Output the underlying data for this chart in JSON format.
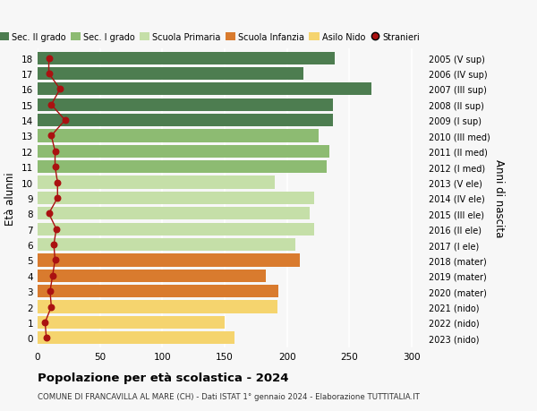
{
  "ages": [
    0,
    1,
    2,
    3,
    4,
    5,
    6,
    7,
    8,
    9,
    10,
    11,
    12,
    13,
    14,
    15,
    16,
    17,
    18
  ],
  "bar_values": [
    158,
    150,
    192,
    193,
    183,
    210,
    207,
    222,
    218,
    222,
    190,
    232,
    234,
    225,
    237,
    237,
    268,
    213,
    238
  ],
  "stranieri": [
    7,
    6,
    11,
    10,
    12,
    14,
    13,
    15,
    9,
    16,
    16,
    14,
    14,
    11,
    22,
    11,
    18,
    9,
    9
  ],
  "right_labels": [
    "2023 (nido)",
    "2022 (nido)",
    "2021 (nido)",
    "2020 (mater)",
    "2019 (mater)",
    "2018 (mater)",
    "2017 (I ele)",
    "2016 (II ele)",
    "2015 (III ele)",
    "2014 (IV ele)",
    "2013 (V ele)",
    "2012 (I med)",
    "2011 (II med)",
    "2010 (III med)",
    "2009 (I sup)",
    "2008 (II sup)",
    "2007 (III sup)",
    "2006 (IV sup)",
    "2005 (V sup)"
  ],
  "bar_colors": [
    "#f5d46e",
    "#f5d46e",
    "#f5d46e",
    "#d97b2e",
    "#d97b2e",
    "#d97b2e",
    "#c5dfa8",
    "#c5dfa8",
    "#c5dfa8",
    "#c5dfa8",
    "#c5dfa8",
    "#8dbb72",
    "#8dbb72",
    "#8dbb72",
    "#4d7d50",
    "#4d7d50",
    "#4d7d50",
    "#4d7d50",
    "#4d7d50"
  ],
  "stranieri_color": "#aa1111",
  "title": "Popolazione per età scolastica - 2024",
  "subtitle": "COMUNE DI FRANCAVILLA AL MARE (CH) - Dati ISTAT 1° gennaio 2024 - Elaborazione TUTTITALIA.IT",
  "ylabel": "Età alunni",
  "right_axis_label": "Anni di nascita",
  "xlim": [
    0,
    310
  ],
  "xticks": [
    0,
    50,
    100,
    150,
    200,
    250,
    300
  ],
  "legend_labels": [
    "Sec. II grado",
    "Sec. I grado",
    "Scuola Primaria",
    "Scuola Infanzia",
    "Asilo Nido",
    "Stranieri"
  ],
  "legend_colors": [
    "#4d7d50",
    "#8dbb72",
    "#c5dfa8",
    "#d97b2e",
    "#f5d46e",
    "#aa1111"
  ],
  "bg_color": "#f7f7f7",
  "bar_height": 0.82
}
